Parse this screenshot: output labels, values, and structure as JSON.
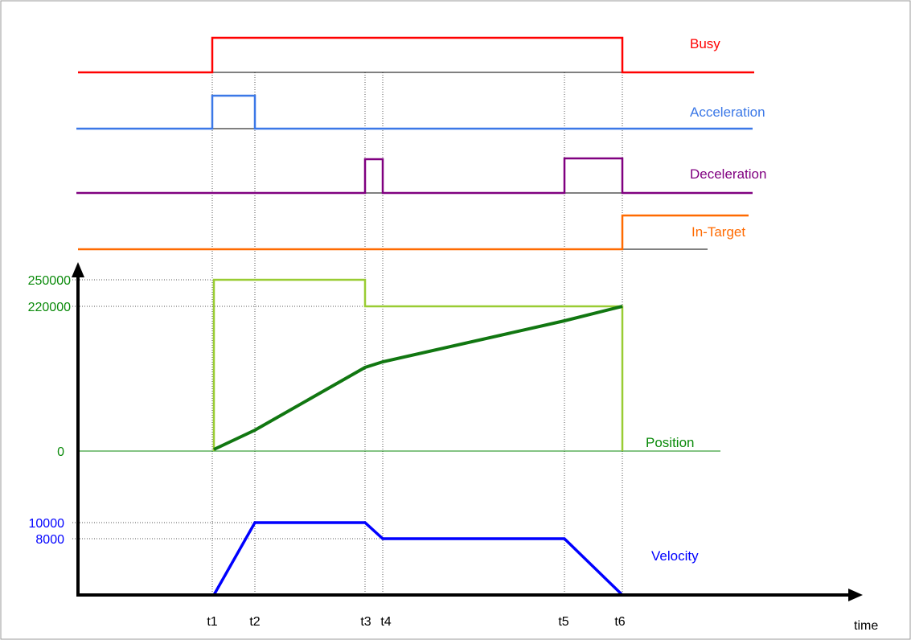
{
  "signals": {
    "busy": {
      "label": "Busy",
      "color": "#ff0000"
    },
    "acceleration": {
      "label": "Acceleration",
      "color": "#3b78e7"
    },
    "deceleration": {
      "label": "Deceleration",
      "color": "#800080"
    },
    "in_target": {
      "label": "In-Target",
      "color": "#ff6a00"
    }
  },
  "position": {
    "label": "Position",
    "label_color": "#0a8a0a",
    "line_color": "#117711",
    "target_line_color": "#99cc33",
    "ticks": [
      "250000",
      "220000",
      "0"
    ]
  },
  "velocity": {
    "label": "Velocity",
    "color": "#0000ff",
    "ticks": [
      "10000",
      "8000"
    ]
  },
  "time_axis": {
    "label": "time",
    "markers": [
      "t1",
      "t2",
      "t3",
      "t4",
      "t5",
      "t6"
    ]
  }
}
